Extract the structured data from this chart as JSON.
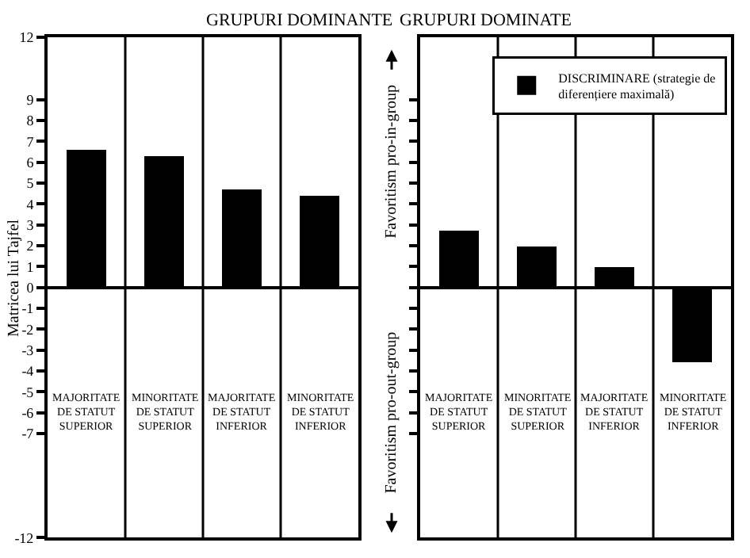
{
  "chart_data": [
    {
      "type": "bar",
      "title": "GRUPURI DOMINANTE",
      "ylabel": "Matricea lui Tajfel",
      "categories": [
        "MAJORITATE DE STATUT SUPERIOR",
        "MINORITATE DE STATUT SUPERIOR",
        "MAJORITATE DE STATUT INFERIOR",
        "MINORITATE DE STATUT INFERIOR"
      ],
      "series": [
        {
          "color": "#000000",
          "values": [
            6.6,
            6.3,
            4.7,
            4.4
          ]
        }
      ],
      "ylim": [
        -12,
        12
      ],
      "yticks": [
        12,
        9,
        8,
        7,
        6,
        5,
        4,
        3,
        2,
        1,
        0,
        -1,
        -2,
        -3,
        -4,
        -5,
        -6,
        -7,
        -12
      ],
      "grid": "x",
      "legend": false
    },
    {
      "type": "bar",
      "title": "GRUPURI DOMINATE",
      "categories": [
        "MAJORITATE DE STATUT SUPERIOR",
        "MINORITATE DE STATUT SUPERIOR",
        "MAJORITATE DE STATUT INFERIOR",
        "MINORITATE DE STATUT INFERIOR"
      ],
      "series": [
        {
          "name": "DISCRIMINARE (strategie de diferențiere maximală)",
          "color": "#000000",
          "values": [
            2.7,
            2.0,
            1.0,
            -3.6
          ]
        }
      ],
      "ylim": [
        -12,
        12
      ],
      "yticks": [
        9,
        8,
        7,
        6,
        5,
        4,
        3,
        2,
        1,
        0,
        -1,
        -2,
        -3,
        -4,
        -5,
        -6,
        -7
      ],
      "annotations": [
        "Favoritism pro-in-group",
        "Favoritism pro-out-group"
      ],
      "tick_labels": "x",
      "grid": "x",
      "legend": "top right"
    }
  ]
}
